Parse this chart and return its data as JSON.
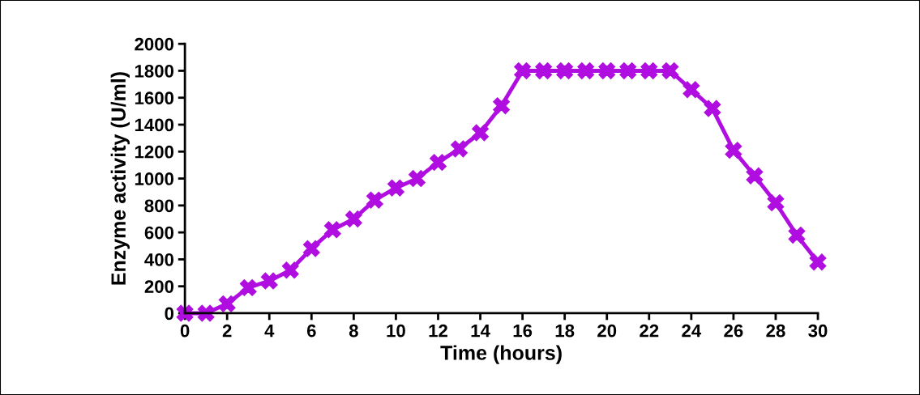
{
  "chart_data": {
    "type": "line",
    "xlabel": "Time (hours)",
    "ylabel": "Enzyme activity (U/ml)",
    "x": [
      0,
      1,
      2,
      3,
      4,
      5,
      6,
      7,
      8,
      9,
      10,
      11,
      12,
      13,
      14,
      15,
      16,
      17,
      18,
      19,
      20,
      21,
      22,
      23,
      24,
      25,
      26,
      27,
      28,
      29,
      30
    ],
    "series": [
      {
        "color": "#b00ee0",
        "values": [
          0,
          0,
          70,
          190,
          240,
          320,
          480,
          620,
          700,
          840,
          930,
          1000,
          1120,
          1220,
          1340,
          1540,
          1800,
          1800,
          1800,
          1800,
          1800,
          1800,
          1800,
          1800,
          1660,
          1520,
          1210,
          1020,
          820,
          580,
          380
        ]
      }
    ],
    "xlim": [
      0,
      30
    ],
    "xticks": [
      0,
      2,
      4,
      6,
      8,
      10,
      12,
      14,
      16,
      18,
      20,
      22,
      24,
      26,
      28,
      30
    ],
    "ylim": [
      0,
      2000
    ],
    "yticks": [
      0,
      200,
      400,
      600,
      800,
      1000,
      1200,
      1400,
      1600,
      1800,
      2000
    ],
    "marker": "cross",
    "line_style": "solid",
    "grid": false,
    "legend": false
  }
}
